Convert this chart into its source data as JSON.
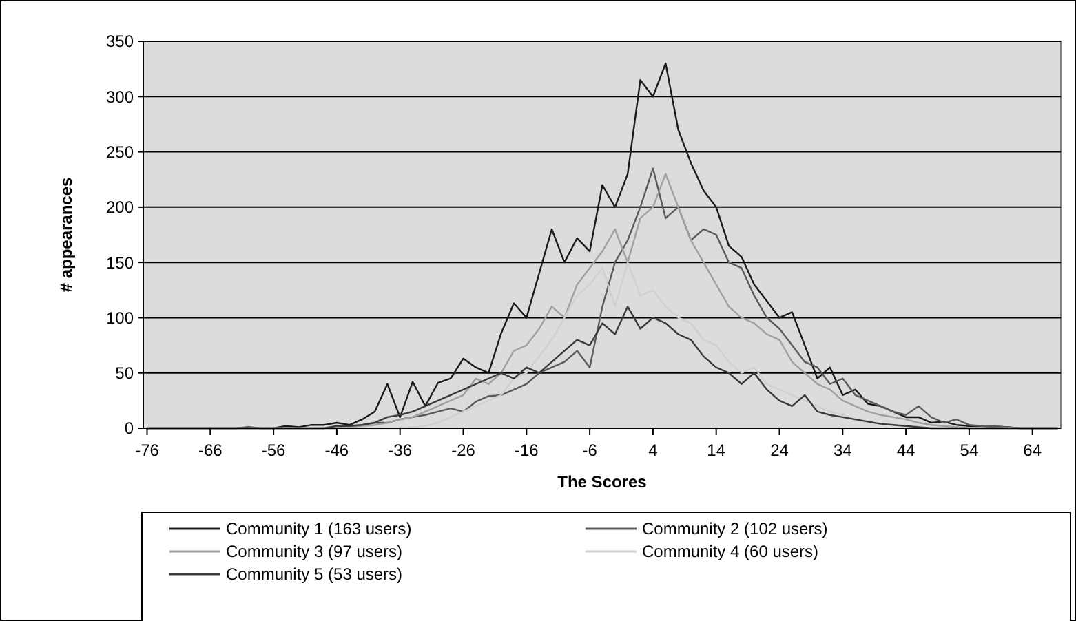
{
  "chart_data": {
    "type": "line",
    "xlabel": "The Scores",
    "ylabel": "# appearances",
    "x": [
      -76,
      -74,
      -72,
      -70,
      -68,
      -66,
      -64,
      -62,
      -60,
      -58,
      -56,
      -54,
      -52,
      -50,
      -48,
      -46,
      -44,
      -42,
      -40,
      -38,
      -36,
      -34,
      -32,
      -30,
      -28,
      -26,
      -24,
      -22,
      -20,
      -18,
      -16,
      -14,
      -12,
      -10,
      -8,
      -6,
      -4,
      -2,
      0,
      2,
      4,
      6,
      8,
      10,
      12,
      14,
      16,
      18,
      20,
      22,
      24,
      26,
      28,
      30,
      32,
      34,
      36,
      38,
      40,
      42,
      44,
      46,
      48,
      50,
      52,
      54,
      56,
      58,
      60,
      62,
      64,
      66,
      68
    ],
    "xlim": [
      -76.6,
      68.5
    ],
    "xticks": [
      -76,
      -66,
      -56,
      -46,
      -36,
      -26,
      -16,
      -6,
      4,
      14,
      24,
      34,
      44,
      54,
      64
    ],
    "ylim": [
      0,
      350
    ],
    "yticks": [
      0,
      50,
      100,
      150,
      200,
      250,
      300,
      350
    ],
    "grid": "y",
    "legend": "bottom",
    "marker": "none",
    "line_style": "solid",
    "series": [
      {
        "name": "Community 1 (163 users)",
        "color": "#1a1a1a",
        "values": [
          0,
          0,
          0,
          0,
          0,
          0,
          0,
          0,
          1,
          0,
          0,
          2,
          1,
          3,
          3,
          5,
          3,
          8,
          15,
          40,
          10,
          42,
          20,
          41,
          45,
          63,
          55,
          50,
          86,
          113,
          100,
          140,
          180,
          150,
          172,
          160,
          220,
          200,
          230,
          315,
          300,
          330,
          270,
          240,
          215,
          200,
          165,
          155,
          130,
          115,
          100,
          105,
          75,
          45,
          55,
          30,
          35,
          22,
          20,
          15,
          10,
          10,
          5,
          6,
          3,
          2,
          2,
          1,
          1,
          0,
          0,
          0,
          0
        ]
      },
      {
        "name": "Community 2 (102 users)",
        "color": "#5a5a5a",
        "values": [
          0,
          0,
          0,
          0,
          0,
          0,
          0,
          0,
          0,
          0,
          0,
          0,
          0,
          0,
          0,
          0,
          2,
          3,
          5,
          5,
          8,
          10,
          12,
          15,
          18,
          15,
          24,
          29,
          30,
          35,
          40,
          50,
          55,
          60,
          70,
          55,
          110,
          150,
          170,
          200,
          235,
          190,
          200,
          170,
          180,
          175,
          150,
          145,
          120,
          100,
          90,
          75,
          60,
          55,
          40,
          45,
          30,
          25,
          20,
          15,
          12,
          20,
          10,
          5,
          8,
          3,
          2,
          2,
          1,
          0,
          0,
          0,
          0
        ]
      },
      {
        "name": "Community 3 (97 users)",
        "color": "#a0a0a0",
        "values": [
          0,
          0,
          0,
          0,
          0,
          0,
          0,
          0,
          0,
          0,
          0,
          0,
          0,
          0,
          0,
          0,
          1,
          2,
          3,
          5,
          8,
          10,
          15,
          20,
          25,
          30,
          45,
          40,
          50,
          70,
          75,
          90,
          110,
          100,
          130,
          145,
          160,
          180,
          150,
          190,
          200,
          230,
          200,
          170,
          150,
          130,
          110,
          100,
          95,
          85,
          80,
          60,
          50,
          40,
          35,
          25,
          20,
          15,
          12,
          10,
          8,
          5,
          3,
          2,
          1,
          0,
          0,
          0,
          0,
          0,
          0,
          0,
          0
        ]
      },
      {
        "name": "Community 4 (60 users)",
        "color": "#d0d0d0",
        "values": [
          0,
          0,
          0,
          0,
          0,
          0,
          0,
          0,
          0,
          0,
          0,
          0,
          0,
          0,
          0,
          0,
          0,
          0,
          0,
          0,
          0,
          1,
          2,
          5,
          10,
          15,
          20,
          25,
          30,
          45,
          50,
          65,
          80,
          100,
          120,
          130,
          145,
          110,
          150,
          120,
          125,
          110,
          100,
          95,
          80,
          75,
          60,
          50,
          55,
          40,
          35,
          30,
          25,
          20,
          15,
          12,
          8,
          5,
          4,
          3,
          2,
          1,
          0,
          0,
          0,
          0,
          0,
          0,
          0,
          0,
          0,
          0,
          0
        ]
      },
      {
        "name": "Community 5 (53 users)",
        "color": "#3a3a3a",
        "values": [
          0,
          0,
          0,
          0,
          0,
          0,
          0,
          0,
          0,
          0,
          0,
          0,
          0,
          0,
          0,
          2,
          2,
          3,
          5,
          10,
          12,
          15,
          20,
          25,
          30,
          35,
          40,
          45,
          50,
          45,
          55,
          50,
          60,
          70,
          80,
          75,
          95,
          85,
          110,
          90,
          100,
          95,
          85,
          80,
          65,
          55,
          50,
          40,
          50,
          35,
          25,
          20,
          30,
          15,
          12,
          10,
          8,
          6,
          4,
          3,
          2,
          1,
          0,
          0,
          0,
          0,
          0,
          0,
          0,
          0,
          0,
          0,
          0
        ]
      }
    ]
  }
}
